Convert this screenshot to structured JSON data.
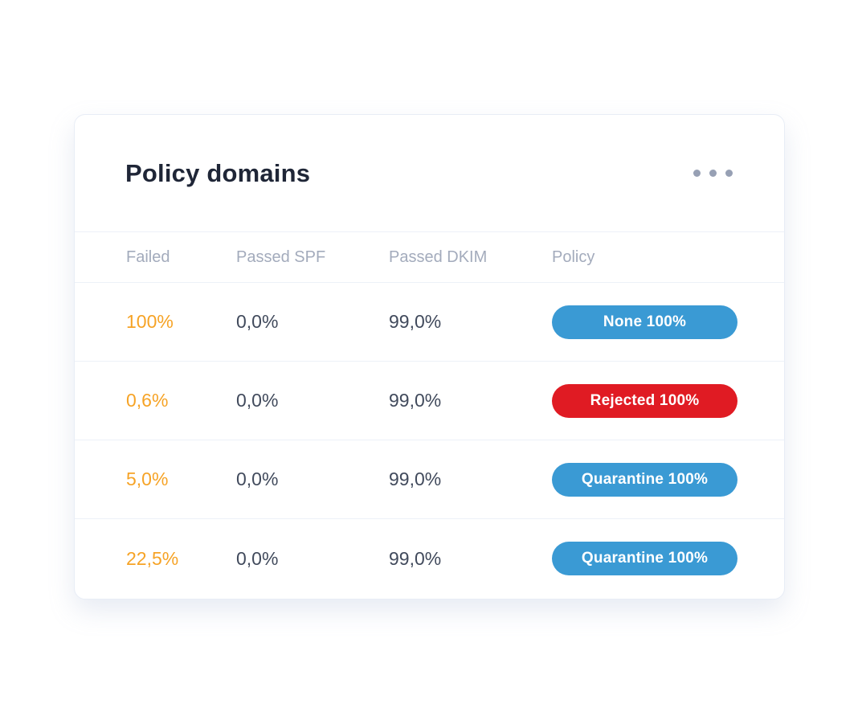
{
  "card": {
    "title": "Policy domains",
    "menu_icon": "ellipsis-icon",
    "columns": {
      "failed": "Failed",
      "spf": "Passed SPF",
      "dkim": "Passed DKIM",
      "policy": "Policy"
    },
    "rows": [
      {
        "failed": "100%",
        "spf": "0,0%",
        "dkim": "99,0%",
        "policy_label": "None 100%",
        "policy_type": "none"
      },
      {
        "failed": "0,6%",
        "spf": "0,0%",
        "dkim": "99,0%",
        "policy_label": "Rejected 100%",
        "policy_type": "rejected"
      },
      {
        "failed": "5,0%",
        "spf": "0,0%",
        "dkim": "99,0%",
        "policy_label": "Quarantine 100%",
        "policy_type": "quarantine"
      },
      {
        "failed": "22,5%",
        "spf": "0,0%",
        "dkim": "99,0%",
        "policy_label": "Quarantine 100%",
        "policy_type": "quarantine"
      }
    ],
    "colors": {
      "accent_orange": "#f6a326",
      "badge_blue": "#3a9ad4",
      "badge_red": "#e01b23",
      "title_text": "#1f2637",
      "body_text": "#414a5c",
      "header_text": "#a3abbc",
      "divider": "#edf1f8"
    }
  }
}
